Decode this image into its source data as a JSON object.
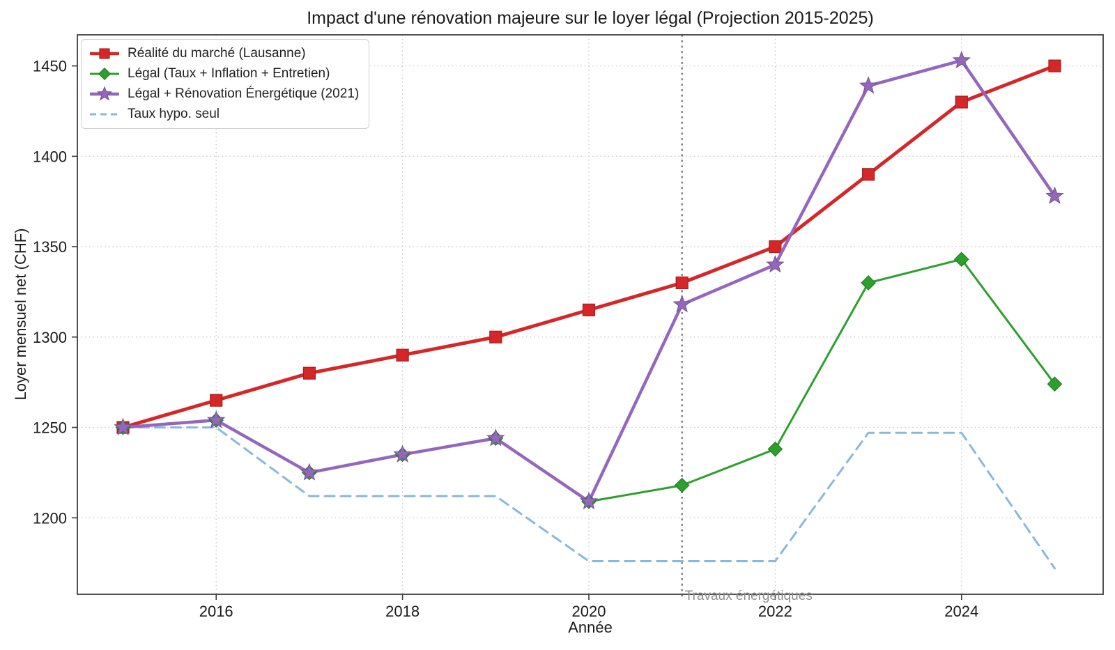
{
  "chart_data": {
    "type": "line",
    "title": "Impact d'une rénovation majeure sur le loyer légal (Projection 2015-2025)",
    "xlabel": "Année",
    "ylabel": "Loyer mensuel net (CHF)",
    "x": [
      2015,
      2016,
      2017,
      2018,
      2019,
      2020,
      2021,
      2022,
      2023,
      2024,
      2025
    ],
    "xticks": [
      2016,
      2018,
      2020,
      2022,
      2024
    ],
    "yticks": [
      1200,
      1250,
      1300,
      1350,
      1400,
      1450
    ],
    "xlim": [
      2014.51,
      2025.52
    ],
    "ylim": [
      1157.7,
      1467.2
    ],
    "grid": true,
    "legend_position": "upper-left",
    "series": [
      {
        "name": "Réalité du marché (Lausanne)",
        "color": "#d62728",
        "marker": "square",
        "linestyle": "solid",
        "linewidth": 5,
        "values": [
          1250,
          1265,
          1280,
          1290,
          1300,
          1315,
          1330,
          1350,
          1390,
          1430,
          1450
        ]
      },
      {
        "name": "Légal (Taux + Inflation + Entretien)",
        "color": "#2ca02c",
        "marker": "diamond",
        "linestyle": "solid",
        "linewidth": 3,
        "values": [
          1250,
          1254,
          1225,
          1235,
          1244,
          1209,
          1218,
          1238,
          1330,
          1343,
          1274
        ]
      },
      {
        "name": "Légal + Rénovation Énergétique (2021)",
        "color": "#9467bd",
        "marker": "star",
        "linestyle": "solid",
        "linewidth": 4.5,
        "values": [
          1250,
          1254,
          1225,
          1235,
          1244,
          1209,
          1318,
          1340,
          1439,
          1453,
          1378
        ]
      },
      {
        "name": "Taux hypo. seul",
        "color": "#89b8dc",
        "marker": "none",
        "linestyle": "dashed",
        "linewidth": 3,
        "values": [
          1250,
          1250,
          1212,
          1212,
          1212,
          1176,
          1176,
          1176,
          1247,
          1247,
          1172
        ]
      }
    ],
    "annotation": {
      "label": "Travaux énergétiques",
      "x": 2021,
      "text_color": "#8e8e8e",
      "line_color": "#808080"
    }
  }
}
